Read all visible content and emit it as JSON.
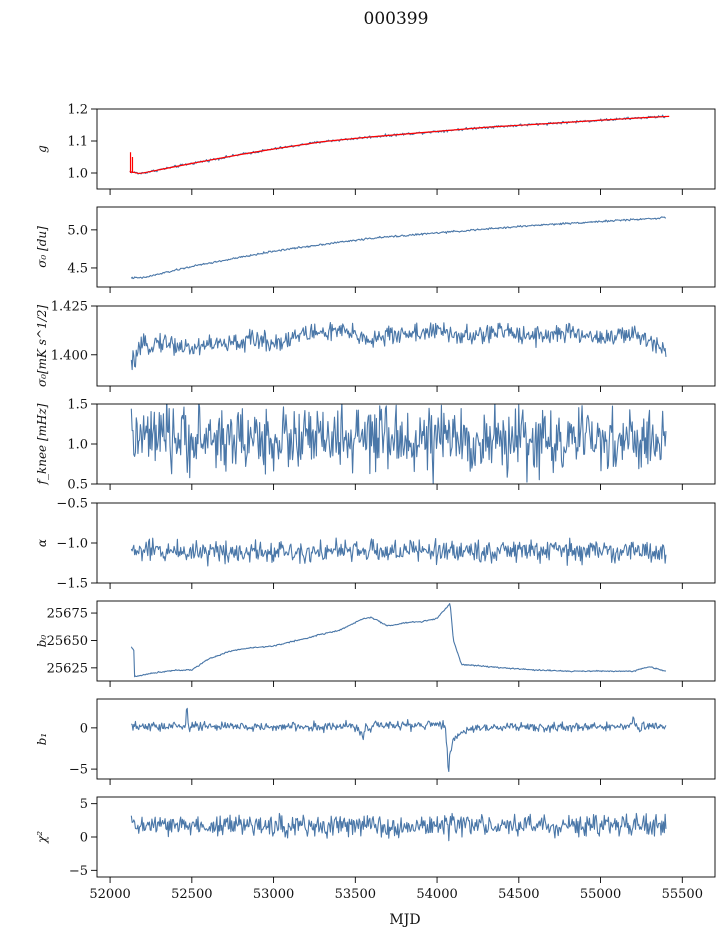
{
  "figure": {
    "title": "000399",
    "xlabel": "MJD"
  },
  "colors": {
    "series": "#4a77a8",
    "fit": "#ff0000",
    "axis": "#000000"
  },
  "chart_data": [
    {
      "type": "line",
      "ylabel": "g",
      "xlim": [
        51920,
        55700
      ],
      "ylim": [
        0.95,
        1.2
      ],
      "yticks": [
        1.0,
        1.1,
        1.2
      ],
      "ytick_labels": [
        "1.0",
        "1.1",
        "1.2"
      ],
      "series": [
        {
          "kind": "data",
          "color": "#4a77a8",
          "x": [
            52120,
            52180,
            52300,
            52500,
            52800,
            53000,
            53300,
            53600,
            54000,
            54300,
            54600,
            55000,
            55300,
            55400
          ],
          "y": [
            1.005,
            0.998,
            1.01,
            1.03,
            1.058,
            1.075,
            1.098,
            1.113,
            1.13,
            1.143,
            1.152,
            1.165,
            1.174,
            1.177
          ],
          "noise": 0.002
        },
        {
          "kind": "fit",
          "color": "#ff0000",
          "x": [
            52120,
            52180,
            52300,
            52500,
            52800,
            53000,
            53300,
            53600,
            54000,
            54300,
            54600,
            55000,
            55300,
            55420
          ],
          "y": [
            1.005,
            0.998,
            1.01,
            1.03,
            1.058,
            1.075,
            1.098,
            1.113,
            1.13,
            1.143,
            1.152,
            1.165,
            1.174,
            1.177
          ],
          "spike": {
            "x": 52125,
            "from": 1.0,
            "to": 1.065
          }
        }
      ]
    },
    {
      "type": "line",
      "ylabel": "σ₀ [du]",
      "xlim": [
        51920,
        55700
      ],
      "ylim": [
        4.25,
        5.3
      ],
      "yticks": [
        4.5,
        5.0
      ],
      "ytick_labels": [
        "4.5",
        "5.0"
      ],
      "series": [
        {
          "kind": "data",
          "color": "#4a77a8",
          "x": [
            52130,
            52200,
            52500,
            52800,
            53000,
            53300,
            53600,
            54000,
            54300,
            54600,
            55000,
            55400
          ],
          "y": [
            4.37,
            4.37,
            4.52,
            4.64,
            4.72,
            4.81,
            4.89,
            4.96,
            5.01,
            5.06,
            5.11,
            5.16
          ],
          "noise": 0.006
        }
      ]
    },
    {
      "type": "line",
      "ylabel": "σ₀[mK s^1/2]",
      "xlim": [
        51920,
        55700
      ],
      "ylim": [
        1.384,
        1.425
      ],
      "yticks": [
        1.4,
        1.425
      ],
      "ytick_labels": [
        "1.400",
        "1.425"
      ],
      "series": [
        {
          "kind": "data",
          "color": "#4a77a8",
          "x": [
            52130,
            52150,
            52200,
            52300,
            52500,
            52600,
            52700,
            52900,
            53000,
            53200,
            53400,
            53600,
            53800,
            54000,
            54200,
            54400,
            54600,
            54800,
            55000,
            55200,
            55400
          ],
          "y": [
            1.394,
            1.398,
            1.404,
            1.407,
            1.403,
            1.406,
            1.405,
            1.408,
            1.406,
            1.411,
            1.412,
            1.408,
            1.411,
            1.412,
            1.409,
            1.412,
            1.41,
            1.411,
            1.409,
            1.41,
            1.404
          ],
          "noise": 0.0025
        }
      ]
    },
    {
      "type": "line",
      "ylabel": "f_knee [mHz]",
      "xlim": [
        51920,
        55700
      ],
      "ylim": [
        0.5,
        1.5
      ],
      "yticks": [
        0.5,
        1.0,
        1.5
      ],
      "ytick_labels": [
        "0.5",
        "1.0",
        "1.5"
      ],
      "series": [
        {
          "kind": "data",
          "color": "#4a77a8",
          "x": [
            52130,
            55400
          ],
          "y": [
            1.07,
            1.03
          ],
          "noise": 0.2
        }
      ]
    },
    {
      "type": "line",
      "ylabel": "α",
      "xlim": [
        51920,
        55700
      ],
      "ylim": [
        -1.5,
        -0.5
      ],
      "yticks": [
        -1.5,
        -1.0,
        -0.5
      ],
      "ytick_labels": [
        "−1.5",
        "−1.0",
        "−0.5"
      ],
      "series": [
        {
          "kind": "data",
          "color": "#4a77a8",
          "x": [
            52130,
            55400
          ],
          "y": [
            -1.1,
            -1.1
          ],
          "noise": 0.07
        }
      ]
    },
    {
      "type": "line",
      "ylabel": "b₀",
      "xlim": [
        51920,
        55700
      ],
      "ylim": [
        25613,
        25686
      ],
      "yticks": [
        25625,
        25650,
        25675
      ],
      "ytick_labels": [
        "25625",
        "25650",
        "25675"
      ],
      "series": [
        {
          "kind": "data",
          "color": "#4a77a8",
          "x": [
            52130,
            52145,
            52150,
            52250,
            52400,
            52500,
            52600,
            52750,
            52850,
            53000,
            53200,
            53300,
            53400,
            53550,
            53600,
            53700,
            53800,
            53900,
            54000,
            54080,
            54100,
            54150,
            54250,
            54400,
            54600,
            54800,
            55000,
            55200,
            55300,
            55400
          ],
          "y": [
            25644,
            25641,
            25617,
            25620,
            25623,
            25623,
            25633,
            25641,
            25643,
            25645,
            25652,
            25656,
            25659,
            25670,
            25671,
            25663,
            25666,
            25667,
            25670,
            25684,
            25650,
            25628,
            25627,
            25625,
            25623,
            25622,
            25622,
            25622,
            25626,
            25622
          ],
          "noise": 0.3
        }
      ]
    },
    {
      "type": "line",
      "ylabel": "b₁",
      "xlim": [
        51920,
        55700
      ],
      "ylim": [
        -6.2,
        3.5
      ],
      "yticks": [
        -5,
        0
      ],
      "ytick_labels": [
        "−5",
        "0"
      ],
      "series": [
        {
          "kind": "data",
          "color": "#4a77a8",
          "x": [
            52130,
            52460,
            52470,
            52480,
            52490,
            53000,
            53500,
            53550,
            53560,
            53600,
            54050,
            54060,
            54070,
            54080,
            54100,
            54150,
            54250,
            54400,
            55190,
            55200,
            55210,
            55400
          ],
          "y": [
            0.1,
            0.2,
            2.8,
            0.1,
            0.2,
            0.1,
            0.2,
            -1.0,
            0.1,
            0.2,
            0.4,
            -2.0,
            -5.2,
            -3.0,
            -1.5,
            -0.5,
            0.1,
            0.1,
            0.1,
            1.6,
            0.1,
            0.1
          ],
          "noise": 0.28
        }
      ]
    },
    {
      "type": "line",
      "ylabel": "χ²",
      "xlim": [
        51920,
        55700
      ],
      "ylim": [
        -6,
        6
      ],
      "yticks": [
        -5,
        0,
        5
      ],
      "ytick_labels": [
        "−5",
        "0",
        "5"
      ],
      "xticks": [
        52000,
        52500,
        53000,
        53500,
        54000,
        54500,
        55000,
        55500
      ],
      "xtick_labels": [
        "52000",
        "52500",
        "53000",
        "53500",
        "54000",
        "54500",
        "55000",
        "55500"
      ],
      "series": [
        {
          "kind": "data",
          "color": "#4a77a8",
          "x": [
            52130,
            55400
          ],
          "y": [
            1.7,
            1.7
          ],
          "noise": 0.8
        }
      ]
    }
  ]
}
